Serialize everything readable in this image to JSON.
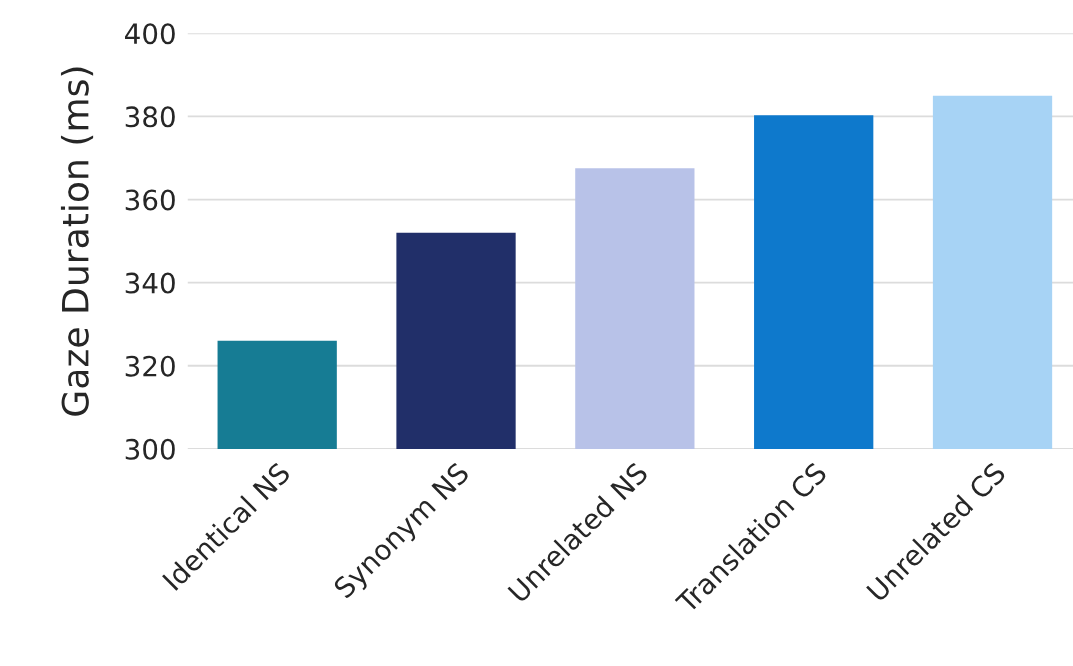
{
  "chart_data": {
    "type": "bar",
    "ylabel": "Gaze Duration (ms)",
    "categories": [
      "Identical NS",
      "Synonym NS",
      "Unrelated NS",
      "Translation CS",
      "Unrelated CS"
    ],
    "values": [
      326,
      352,
      367.5,
      380.3,
      385
    ],
    "colors": [
      "#167c94",
      "#212f69",
      "#b8c2e8",
      "#0e79cc",
      "#a7d3f5"
    ],
    "ylim": [
      300,
      400
    ],
    "yticks": [
      300,
      320,
      340,
      360,
      380,
      400
    ],
    "grid": "y",
    "legend": false
  }
}
